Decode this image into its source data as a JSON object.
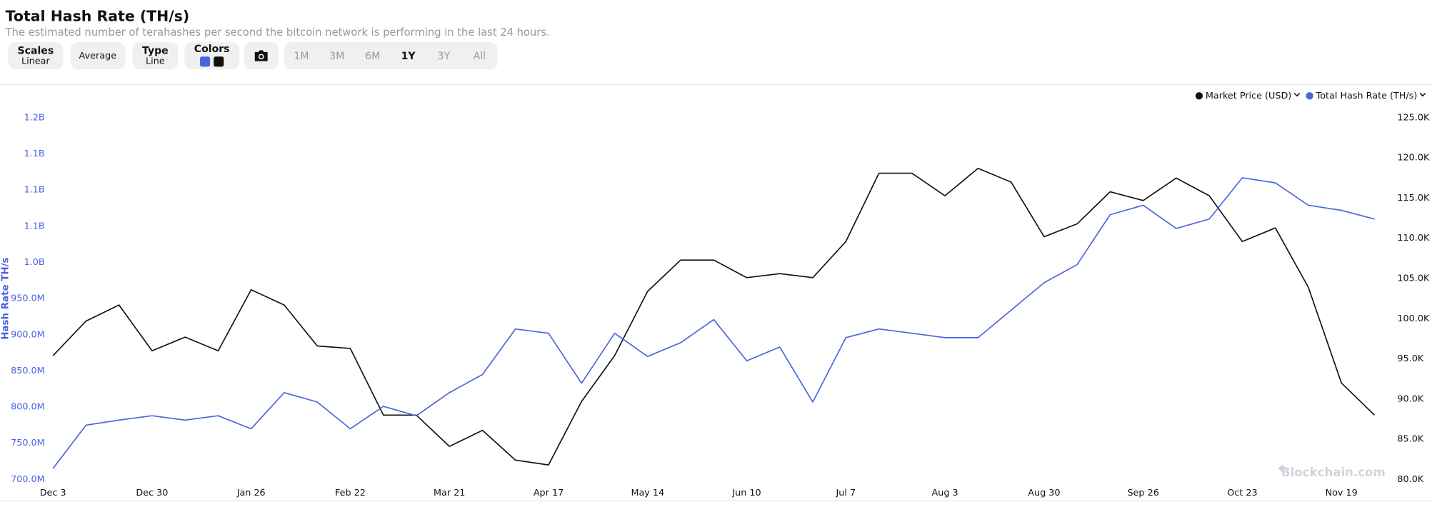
{
  "header": {
    "title": "Total Hash Rate (TH/s)",
    "subtitle": "The estimated number of terahashes per second the bitcoin network is performing in the last 24 hours."
  },
  "controls": {
    "scales": {
      "label": "Scales",
      "value": "Linear"
    },
    "average": "Average",
    "type": {
      "label": "Type",
      "value": "Line"
    },
    "colors": "Colors",
    "ranges": [
      "1M",
      "3M",
      "6M",
      "1Y",
      "3Y",
      "All"
    ],
    "active_range": 3
  },
  "watermark": "Blockchain.com",
  "chart_data": {
    "type": "line",
    "y_label": "Hash Rate TH/s",
    "categories": [
      "Dec 3",
      null,
      null,
      "Dec 30",
      null,
      null,
      "Jan 26",
      null,
      null,
      "Feb 22",
      null,
      null,
      "Mar 21",
      null,
      null,
      "Apr 17",
      null,
      null,
      "May 14",
      null,
      null,
      "Jun 10",
      null,
      null,
      "Jul 7",
      null,
      null,
      "Aug 3",
      null,
      null,
      "Aug 30",
      null,
      null,
      "Sep 26",
      null,
      null,
      "Oct 23",
      null,
      null,
      "Nov 19",
      null
    ],
    "series": [
      {
        "name": "Market Price (USD)",
        "color": "#111111",
        "axis": "y2",
        "values": [
          95400,
          99700,
          101700,
          96000,
          97700,
          96000,
          103600,
          101700,
          96600,
          96300,
          88000,
          88000,
          84100,
          86100,
          82400,
          81800,
          89700,
          95400,
          103400,
          107300,
          107300,
          105100,
          105600,
          105100,
          109600,
          118100,
          118100,
          115300,
          118700,
          117000,
          110200,
          111800,
          115800,
          114700,
          117500,
          115300,
          109600,
          111300,
          103900,
          92000,
          88000
        ]
      },
      {
        "name": "Total Hash Rate (TH/s)",
        "color": "#4a63e0",
        "values": [
          715000000,
          775000000,
          782000000,
          788000000,
          782000000,
          788000000,
          770000000,
          820000000,
          807000000,
          770000000,
          801000000,
          788000000,
          820000000,
          845000000,
          908000000,
          902000000,
          833000000,
          902000000,
          870000000,
          889000000,
          921000000,
          864000000,
          883000000,
          807000000,
          896000000,
          908000000,
          902000000,
          896000000,
          896000000,
          934000000,
          972000000,
          997000000,
          1066000000,
          1079000000,
          1047000000,
          1060000000,
          1117000000,
          1110000000,
          1079000000,
          1072000000,
          1060000000
        ]
      }
    ],
    "ylim": [
      700000000,
      1200000000
    ],
    "yticks": [
      {
        "value": 700000000,
        "label": "700.0M"
      },
      {
        "value": 750000000,
        "label": "750.0M"
      },
      {
        "value": 800000000,
        "label": "800.0M"
      },
      {
        "value": 850000000,
        "label": "850.0M"
      },
      {
        "value": 900000000,
        "label": "900.0M"
      },
      {
        "value": 950000000,
        "label": "950.0M"
      },
      {
        "value": 1000000000,
        "label": "1.0B"
      },
      {
        "value": 1050000000,
        "label": "1.1B"
      },
      {
        "value": 1100000000,
        "label": "1.1B"
      },
      {
        "value": 1150000000,
        "label": "1.1B"
      },
      {
        "value": 1200000000,
        "label": "1.2B"
      }
    ],
    "y2lim": [
      80000,
      125000
    ],
    "y2ticks": [
      {
        "value": 80000,
        "label": "80.0K"
      },
      {
        "value": 85000,
        "label": "85.0K"
      },
      {
        "value": 90000,
        "label": "90.0K"
      },
      {
        "value": 95000,
        "label": "95.0K"
      },
      {
        "value": 100000,
        "label": "100.0K"
      },
      {
        "value": 105000,
        "label": "105.0K"
      },
      {
        "value": 110000,
        "label": "110.0K"
      },
      {
        "value": 115000,
        "label": "115.0K"
      },
      {
        "value": 120000,
        "label": "120.0K"
      },
      {
        "value": 125000,
        "label": "125.0K"
      }
    ],
    "legend": "top-right",
    "grid": false
  }
}
